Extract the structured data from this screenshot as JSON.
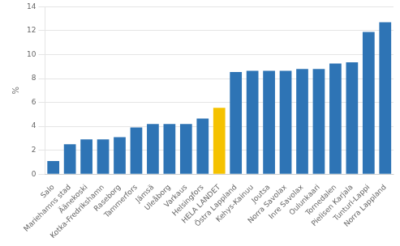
{
  "chart_data": {
    "type": "bar",
    "ylabel": "%",
    "categories": [
      "Salo",
      "Mariehamns stad",
      "Äänekoski",
      "Kotka-Fredrikshamn",
      "Raseborg",
      "Tammerfors",
      "Jämsä",
      "Uleåborg",
      "Varkaus",
      "Helsingfors",
      "HELA LANDET",
      "Östra Lappland",
      "Kehys-Kainuu",
      "Joutsa",
      "Norra Savolax",
      "Inre Savolax",
      "Oulunkaari",
      "Tornedalen",
      "Pielisen Karjala",
      "Tunturi-Lappi",
      "Norra Lappland"
    ],
    "values": [
      1.1,
      2.5,
      2.9,
      2.9,
      3.1,
      3.9,
      4.2,
      4.2,
      4.2,
      4.65,
      5.55,
      8.55,
      8.65,
      8.65,
      8.65,
      8.8,
      8.8,
      9.25,
      9.35,
      11.9,
      12.7
    ],
    "colors": [
      "#2e74b5",
      "#2e74b5",
      "#2e74b5",
      "#2e74b5",
      "#2e74b5",
      "#2e74b5",
      "#2e74b5",
      "#2e74b5",
      "#2e74b5",
      "#2e74b5",
      "#f5c200",
      "#2e74b5",
      "#2e74b5",
      "#2e74b5",
      "#2e74b5",
      "#2e74b5",
      "#2e74b5",
      "#2e74b5",
      "#2e74b5",
      "#2e74b5",
      "#2e74b5"
    ],
    "ylim": [
      0,
      14
    ],
    "yticks": [
      0,
      2,
      4,
      6,
      8,
      10,
      12,
      14
    ],
    "grid": true
  }
}
